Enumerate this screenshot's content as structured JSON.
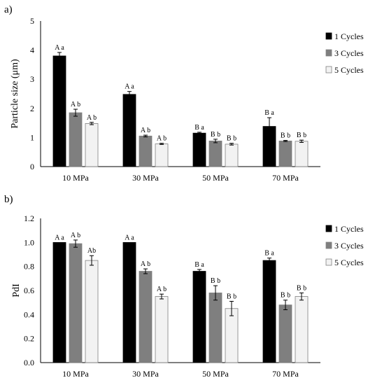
{
  "chart_data": [
    {
      "panel_label": "a)",
      "type": "bar",
      "categories": [
        "10 MPa",
        "30 MPa",
        "50 MPa",
        "70 MPa"
      ],
      "ylabel": "Particle size (μm)",
      "ylim": [
        0,
        5
      ],
      "yticks": [
        "0",
        "1",
        "2",
        "3",
        "4",
        "5"
      ],
      "legend_position": "right",
      "grid": false,
      "series": [
        {
          "name": "1 Cycles",
          "color": "#000000",
          "values": [
            3.8,
            2.48,
            1.15,
            1.38
          ],
          "errors": [
            0.12,
            0.1,
            0.03,
            0.3
          ],
          "labels": [
            "A a",
            "A a",
            "B a",
            "B a"
          ]
        },
        {
          "name": "3 Cycles",
          "color": "#7f7f7f",
          "values": [
            1.85,
            1.05,
            0.88,
            0.88
          ],
          "errors": [
            0.12,
            0.03,
            0.06,
            0.02
          ],
          "labels": [
            "A b",
            "A b",
            "B b",
            "B b"
          ]
        },
        {
          "name": "5 Cycles",
          "color": "#f2f2f2",
          "values": [
            1.48,
            0.78,
            0.77,
            0.87
          ],
          "errors": [
            0.04,
            0.02,
            0.03,
            0.04
          ],
          "labels": [
            "A b",
            "A b",
            "B b",
            "B b"
          ]
        }
      ]
    },
    {
      "panel_label": "b)",
      "type": "bar",
      "categories": [
        "10 MPa",
        "30 MPa",
        "50 MPa",
        "70 MPa"
      ],
      "ylabel": "PdI",
      "ylim": [
        0,
        1.2
      ],
      "yticks": [
        "0.0",
        "0.2",
        "0.4",
        "0.6",
        "0.8",
        "1.0",
        "1.2"
      ],
      "legend_position": "right",
      "grid": false,
      "series": [
        {
          "name": "1 Cycles",
          "color": "#000000",
          "values": [
            1.0,
            1.0,
            0.76,
            0.85
          ],
          "errors": [
            0.0,
            0.0,
            0.015,
            0.02
          ],
          "labels": [
            "A a",
            "A a",
            "B a",
            "B a"
          ]
        },
        {
          "name": "3 Cycles",
          "color": "#7f7f7f",
          "values": [
            0.99,
            0.76,
            0.58,
            0.48
          ],
          "errors": [
            0.03,
            0.02,
            0.06,
            0.04
          ],
          "labels": [
            "A b",
            "A b",
            "B b",
            "B b"
          ]
        },
        {
          "name": "5 Cycles",
          "color": "#f2f2f2",
          "values": [
            0.85,
            0.55,
            0.45,
            0.55
          ],
          "errors": [
            0.04,
            0.02,
            0.06,
            0.03
          ],
          "labels": [
            "Ab",
            "A b",
            "B b",
            "B b"
          ]
        }
      ]
    }
  ]
}
